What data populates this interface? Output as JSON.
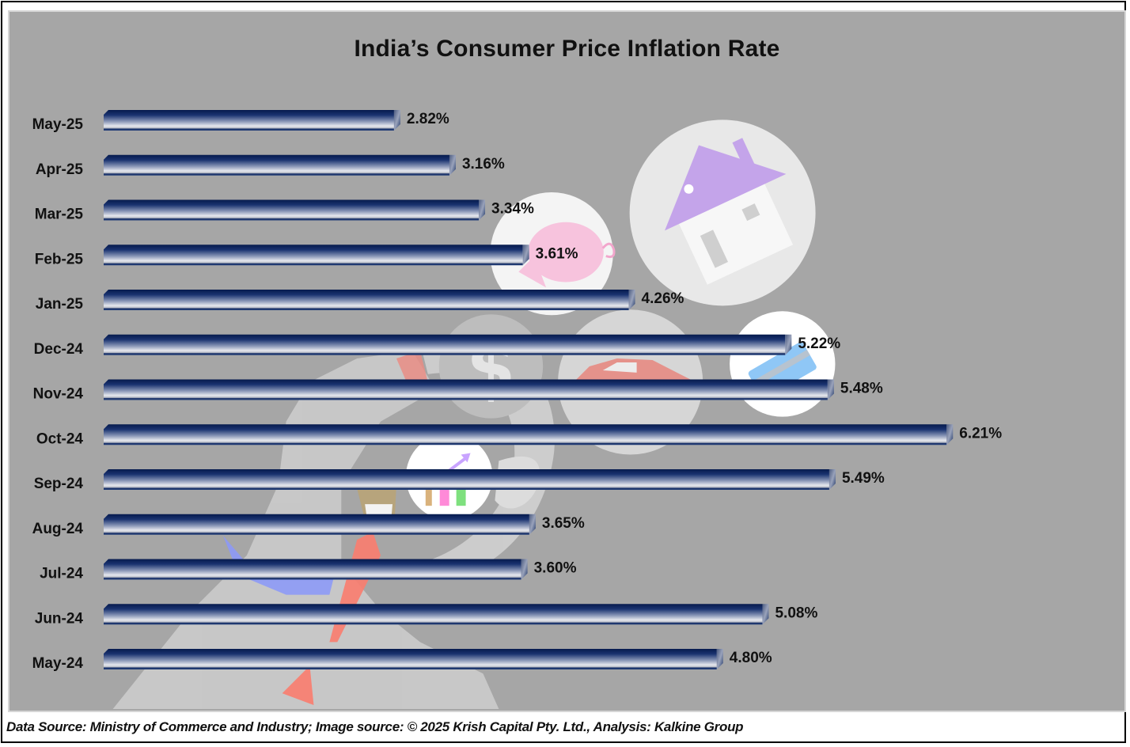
{
  "footer": {
    "source_text": "Data Source: Ministry of Commerce and Industry; Image source: © 2025 Krish Capital Pty. Ltd., Analysis: Kalkine Group"
  },
  "colors": {
    "plot_background": "#a6a6a6",
    "bar_dark": "#0a1f55",
    "bar_light": "#e6e8ee",
    "text": "#111111"
  },
  "background_illustration": {
    "description": "faded finance illustrations: house, piggy bank, dollar coin, car, credit card, growth chart, person with tie",
    "icons": [
      "house-icon",
      "piggy-bank-icon",
      "dollar-icon",
      "car-icon",
      "credit-card-icon",
      "growth-chart-icon",
      "person-icon"
    ]
  },
  "chart_data": {
    "type": "bar",
    "orientation": "horizontal",
    "title": "India’s Consumer Price Inflation Rate",
    "xlabel": "",
    "ylabel": "",
    "xlim": [
      1.0,
      6.5
    ],
    "grid": false,
    "legend": "none",
    "value_suffix": "%",
    "categories": [
      "May-25",
      "Apr-25",
      "Mar-25",
      "Feb-25",
      "Jan-25",
      "Dec-24",
      "Nov-24",
      "Oct-24",
      "Sep-24",
      "Aug-24",
      "Jul-24",
      "Jun-24",
      "May-24"
    ],
    "values": [
      2.82,
      3.16,
      3.34,
      3.61,
      4.26,
      5.22,
      5.48,
      6.21,
      5.49,
      3.65,
      3.6,
      5.08,
      4.8
    ],
    "data_labels": [
      "2.82%",
      "3.16%",
      "3.34%",
      "3.61%",
      "4.26%",
      "5.22%",
      "5.48%",
      "6.21%",
      "5.49%",
      "3.65%",
      "3.60%",
      "5.08%",
      "4.80%"
    ]
  }
}
